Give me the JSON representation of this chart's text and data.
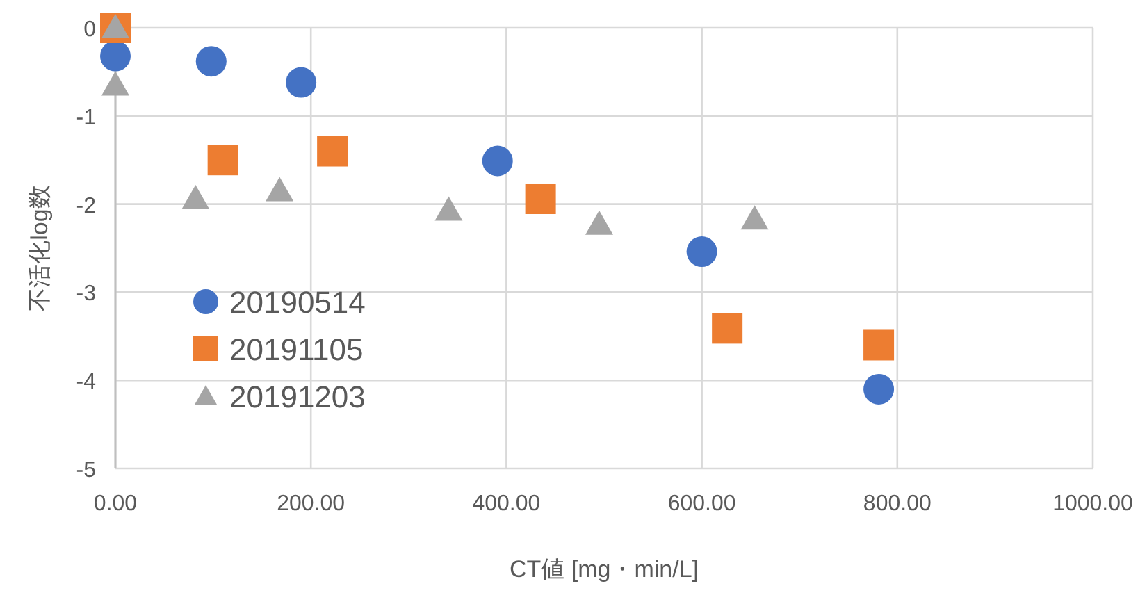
{
  "chart_data": {
    "type": "scatter",
    "xlabel": "CT値 [mg・min/L]",
    "ylabel": "不活化log数",
    "xlim": [
      0,
      1000
    ],
    "ylim": [
      -5,
      0
    ],
    "xticks": [
      {
        "value": 0,
        "label": "0.00"
      },
      {
        "value": 200,
        "label": "200.00"
      },
      {
        "value": 400,
        "label": "400.00"
      },
      {
        "value": 600,
        "label": "600.00"
      },
      {
        "value": 800,
        "label": "800.00"
      },
      {
        "value": 1000,
        "label": "1000.00"
      }
    ],
    "yticks": [
      -5,
      -4,
      -3,
      -2,
      -1,
      0
    ],
    "grid": true,
    "legend": "left",
    "series": [
      {
        "name": "20190514",
        "color": "#4472c4",
        "marker": "circle",
        "x": [
          0,
          98,
          190,
          391,
          600,
          781
        ],
        "values": [
          -0.32,
          -0.38,
          -0.62,
          -1.51,
          -2.54,
          -4.1
        ]
      },
      {
        "name": "20191105",
        "color": "#ed7d31",
        "marker": "square",
        "x": [
          0,
          110,
          222,
          435,
          626,
          781
        ],
        "values": [
          0,
          -1.5,
          -1.4,
          -1.94,
          -3.41,
          -3.6
        ]
      },
      {
        "name": "20191203",
        "color": "#a5a5a5",
        "marker": "triangle",
        "x": [
          0,
          0,
          82,
          168,
          341,
          495,
          654
        ],
        "values": [
          0,
          -0.65,
          -1.94,
          -1.85,
          -2.07,
          -2.23,
          -2.17
        ]
      }
    ]
  }
}
